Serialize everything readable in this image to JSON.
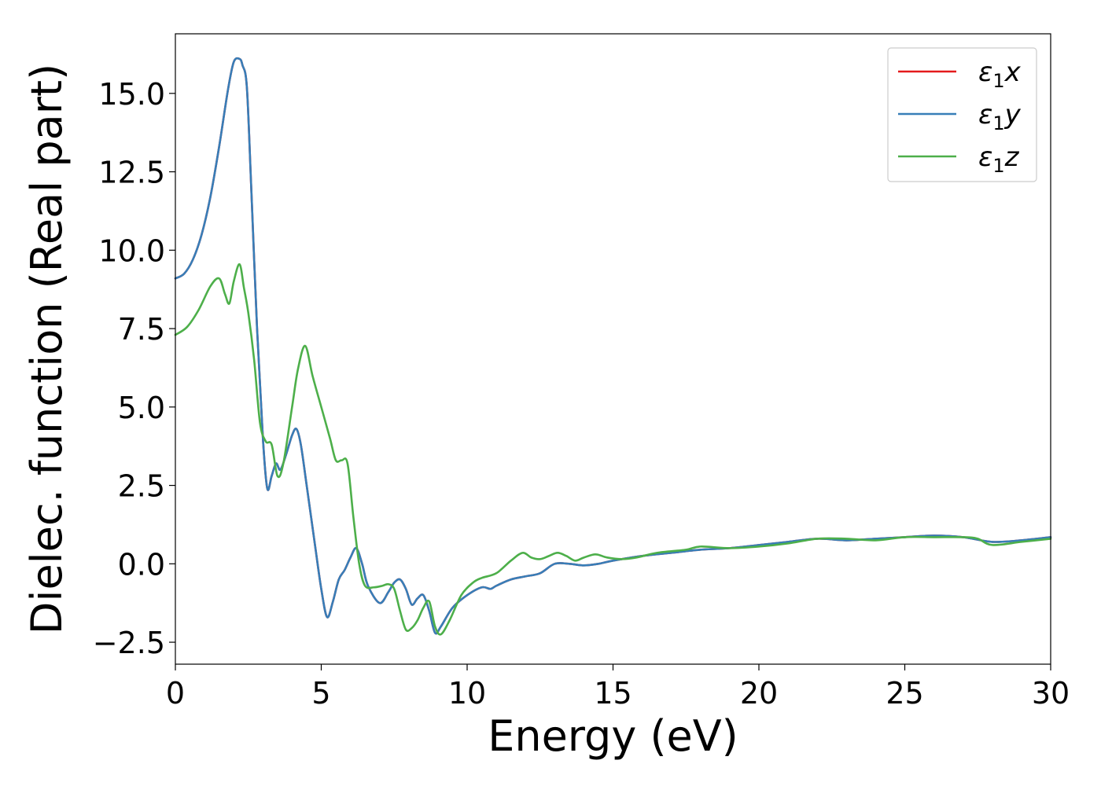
{
  "chart_data": {
    "type": "line",
    "title": "",
    "xlabel": "Energy (eV)",
    "ylabel": "Dielec. function (Real part)",
    "xlim": [
      0,
      30
    ],
    "ylim": [
      -3.2,
      16.9
    ],
    "x_ticks": [
      "0",
      "5",
      "10",
      "15",
      "20",
      "25",
      "30"
    ],
    "y_ticks": [
      "−2.5",
      "0.0",
      "2.5",
      "5.0",
      "7.5",
      "10.0",
      "12.5",
      "15.0"
    ],
    "x_tick_values": [
      0,
      5,
      10,
      15,
      20,
      25,
      30
    ],
    "y_tick_values": [
      -2.5,
      0,
      2.5,
      5,
      7.5,
      10,
      12.5,
      15
    ],
    "grid": false,
    "legend_position": "top-right",
    "series": [
      {
        "name": "ε₁x",
        "label_base": "ε",
        "label_sub": "1",
        "label_suffix": "x",
        "color": "#e41a1c",
        "x": [
          0,
          0.3,
          0.6,
          0.9,
          1.2,
          1.5,
          1.8,
          2.0,
          2.2,
          2.3,
          2.45,
          2.6,
          2.8,
          3.0,
          3.15,
          3.3,
          3.45,
          3.6,
          3.8,
          4.0,
          4.15,
          4.3,
          4.5,
          4.8,
          5.0,
          5.2,
          5.4,
          5.6,
          5.8,
          6.0,
          6.2,
          6.4,
          6.6,
          7.0,
          7.3,
          7.5,
          7.7,
          7.9,
          8.1,
          8.3,
          8.5,
          8.7,
          8.9,
          9.1,
          9.5,
          10.0,
          10.5,
          10.8,
          11.0,
          11.5,
          12.0,
          12.5,
          13.0,
          13.5,
          14.0,
          14.5,
          15.0,
          16.0,
          17.0,
          18.0,
          19.0,
          20.0,
          21.0,
          22.0,
          23.0,
          24.0,
          25.0,
          26.0,
          27.0,
          28.0,
          29.0,
          30.0
        ],
        "y": [
          9.1,
          9.25,
          9.7,
          10.5,
          11.7,
          13.3,
          15.1,
          16.0,
          16.1,
          15.9,
          15.2,
          12.0,
          7.5,
          4.0,
          2.4,
          2.8,
          3.2,
          3.0,
          3.5,
          4.1,
          4.3,
          3.8,
          2.5,
          0.5,
          -0.8,
          -1.7,
          -1.2,
          -0.5,
          -0.2,
          0.2,
          0.5,
          0.0,
          -0.7,
          -1.25,
          -0.9,
          -0.6,
          -0.5,
          -0.8,
          -1.3,
          -1.1,
          -1.0,
          -1.5,
          -2.2,
          -2.0,
          -1.4,
          -1.0,
          -0.75,
          -0.8,
          -0.7,
          -0.5,
          -0.4,
          -0.3,
          0.0,
          0.0,
          -0.05,
          0.0,
          0.1,
          0.25,
          0.35,
          0.45,
          0.5,
          0.6,
          0.7,
          0.8,
          0.75,
          0.8,
          0.85,
          0.9,
          0.85,
          0.7,
          0.75,
          0.85
        ]
      },
      {
        "name": "ε₁y",
        "label_base": "ε",
        "label_sub": "1",
        "label_suffix": "y",
        "color": "#377eb8",
        "x": [
          0,
          0.3,
          0.6,
          0.9,
          1.2,
          1.5,
          1.8,
          2.0,
          2.2,
          2.3,
          2.45,
          2.6,
          2.8,
          3.0,
          3.15,
          3.3,
          3.45,
          3.6,
          3.8,
          4.0,
          4.15,
          4.3,
          4.5,
          4.8,
          5.0,
          5.2,
          5.4,
          5.6,
          5.8,
          6.0,
          6.2,
          6.4,
          6.6,
          7.0,
          7.3,
          7.5,
          7.7,
          7.9,
          8.1,
          8.3,
          8.5,
          8.7,
          8.9,
          9.1,
          9.5,
          10.0,
          10.5,
          10.8,
          11.0,
          11.5,
          12.0,
          12.5,
          13.0,
          13.5,
          14.0,
          14.5,
          15.0,
          16.0,
          17.0,
          18.0,
          19.0,
          20.0,
          21.0,
          22.0,
          23.0,
          24.0,
          25.0,
          26.0,
          27.0,
          28.0,
          29.0,
          30.0
        ],
        "y": [
          9.1,
          9.25,
          9.7,
          10.5,
          11.7,
          13.3,
          15.1,
          16.0,
          16.1,
          15.9,
          15.2,
          12.0,
          7.5,
          4.0,
          2.4,
          2.8,
          3.2,
          3.0,
          3.5,
          4.1,
          4.3,
          3.8,
          2.5,
          0.5,
          -0.8,
          -1.7,
          -1.2,
          -0.5,
          -0.2,
          0.2,
          0.5,
          0.0,
          -0.7,
          -1.25,
          -0.9,
          -0.6,
          -0.5,
          -0.8,
          -1.3,
          -1.1,
          -1.0,
          -1.5,
          -2.2,
          -2.0,
          -1.4,
          -1.0,
          -0.75,
          -0.8,
          -0.7,
          -0.5,
          -0.4,
          -0.3,
          0.0,
          0.0,
          -0.05,
          0.0,
          0.1,
          0.25,
          0.35,
          0.45,
          0.5,
          0.6,
          0.7,
          0.8,
          0.75,
          0.8,
          0.85,
          0.9,
          0.85,
          0.7,
          0.75,
          0.85
        ]
      },
      {
        "name": "ε₁z",
        "label_base": "ε",
        "label_sub": "1",
        "label_suffix": "z",
        "color": "#4daf4a",
        "x": [
          0,
          0.4,
          0.8,
          1.2,
          1.5,
          1.7,
          1.85,
          2.0,
          2.2,
          2.35,
          2.5,
          2.7,
          2.9,
          3.1,
          3.3,
          3.5,
          3.7,
          4.0,
          4.2,
          4.45,
          4.7,
          5.0,
          5.3,
          5.5,
          5.7,
          5.9,
          6.1,
          6.3,
          6.5,
          6.8,
          7.1,
          7.3,
          7.5,
          7.7,
          7.9,
          8.1,
          8.3,
          8.5,
          8.7,
          8.9,
          9.1,
          9.4,
          9.8,
          10.2,
          10.5,
          11.0,
          11.5,
          11.9,
          12.2,
          12.5,
          12.8,
          13.1,
          13.4,
          13.7,
          14.0,
          14.4,
          14.8,
          15.3,
          15.8,
          16.5,
          17.5,
          18.0,
          19.0,
          20.0,
          21.0,
          22.0,
          23.0,
          24.0,
          25.0,
          26.0,
          27.0,
          27.5,
          28.0,
          29.0,
          30.0
        ],
        "y": [
          7.3,
          7.55,
          8.1,
          8.85,
          9.1,
          8.6,
          8.3,
          9.0,
          9.55,
          8.8,
          8.0,
          6.5,
          4.5,
          3.9,
          3.8,
          2.8,
          3.2,
          5.0,
          6.2,
          6.95,
          6.0,
          5.0,
          4.0,
          3.3,
          3.3,
          3.2,
          1.5,
          0.0,
          -0.7,
          -0.75,
          -0.7,
          -0.65,
          -0.8,
          -1.5,
          -2.1,
          -2.05,
          -1.8,
          -1.4,
          -1.2,
          -2.0,
          -2.25,
          -1.8,
          -1.0,
          -0.6,
          -0.45,
          -0.3,
          0.1,
          0.35,
          0.2,
          0.15,
          0.25,
          0.35,
          0.25,
          0.1,
          0.2,
          0.3,
          0.2,
          0.15,
          0.2,
          0.35,
          0.45,
          0.55,
          0.5,
          0.55,
          0.65,
          0.8,
          0.8,
          0.75,
          0.85,
          0.85,
          0.85,
          0.8,
          0.6,
          0.7,
          0.8
        ]
      }
    ]
  }
}
